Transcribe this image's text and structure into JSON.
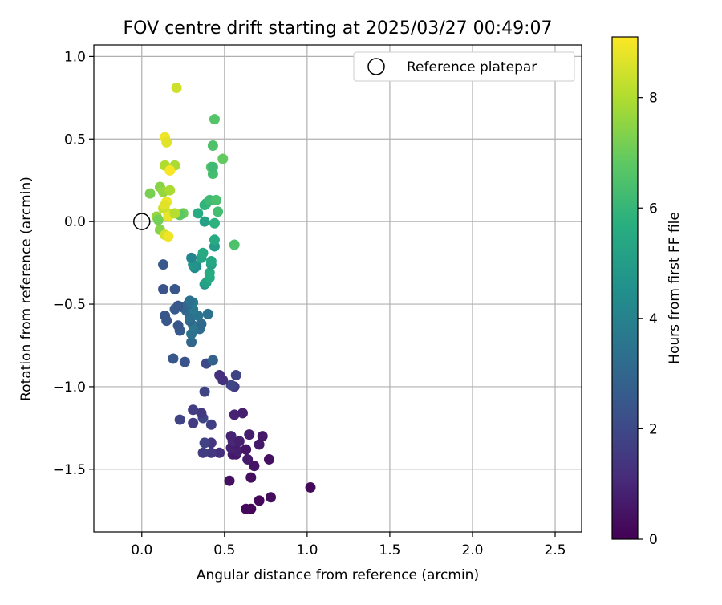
{
  "chart_data": {
    "type": "scatter",
    "title": "FOV centre drift starting at 2025/03/27 00:49:07",
    "xlabel": "Angular distance from reference (arcmin)",
    "ylabel": "Rotation from reference (arcmin)",
    "xlim": [
      -0.29,
      2.66
    ],
    "ylim": [
      -1.88,
      1.07
    ],
    "x_ticks": [
      0.0,
      0.5,
      1.0,
      1.5,
      2.0,
      2.5
    ],
    "x_tick_labels": [
      "0.0",
      "0.5",
      "1.0",
      "1.5",
      "2.0",
      "2.5"
    ],
    "y_ticks": [
      1.0,
      0.5,
      0.0,
      -0.5,
      -1.0,
      -1.5
    ],
    "y_tick_labels": [
      "1.0",
      "0.5",
      "0.0",
      "−0.5",
      "−1.0",
      "−1.5"
    ],
    "grid": true,
    "legend": {
      "position": "top-right",
      "entries": [
        {
          "label": "Reference platepar",
          "marker": "open-circle"
        }
      ]
    },
    "reference_point": {
      "x": 0.0,
      "y": 0.0
    },
    "colorbar": {
      "label": "Hours from first FF file",
      "colormap": "viridis",
      "range": [
        0,
        9.1
      ],
      "ticks": [
        0,
        2,
        4,
        6,
        8
      ],
      "tick_labels": [
        "0",
        "2",
        "4",
        "6",
        "8"
      ]
    },
    "points": [
      {
        "x": 0.66,
        "y": -1.74,
        "c": 0.1
      },
      {
        "x": 0.63,
        "y": -1.74,
        "c": 0.2
      },
      {
        "x": 0.71,
        "y": -1.69,
        "c": 0.15
      },
      {
        "x": 0.78,
        "y": -1.67,
        "c": 0.3
      },
      {
        "x": 1.02,
        "y": -1.61,
        "c": 0.2
      },
      {
        "x": 0.53,
        "y": -1.57,
        "c": 0.4
      },
      {
        "x": 0.66,
        "y": -1.55,
        "c": 0.35
      },
      {
        "x": 0.68,
        "y": -1.48,
        "c": 0.5
      },
      {
        "x": 0.64,
        "y": -1.44,
        "c": 0.6
      },
      {
        "x": 0.77,
        "y": -1.44,
        "c": 0.4
      },
      {
        "x": 0.55,
        "y": -1.41,
        "c": 0.7
      },
      {
        "x": 0.57,
        "y": -1.41,
        "c": 0.6
      },
      {
        "x": 0.58,
        "y": -1.39,
        "c": 0.8
      },
      {
        "x": 0.63,
        "y": -1.38,
        "c": 0.5
      },
      {
        "x": 0.54,
        "y": -1.37,
        "c": 0.9
      },
      {
        "x": 0.56,
        "y": -1.35,
        "c": 0.7
      },
      {
        "x": 0.71,
        "y": -1.35,
        "c": 0.6
      },
      {
        "x": 0.55,
        "y": -1.33,
        "c": 1.0
      },
      {
        "x": 0.59,
        "y": -1.33,
        "c": 0.8
      },
      {
        "x": 0.54,
        "y": -1.3,
        "c": 0.9
      },
      {
        "x": 0.65,
        "y": -1.29,
        "c": 0.7
      },
      {
        "x": 0.73,
        "y": -1.3,
        "c": 0.6
      },
      {
        "x": 0.56,
        "y": -1.17,
        "c": 0.9
      },
      {
        "x": 0.61,
        "y": -1.16,
        "c": 0.8
      },
      {
        "x": 0.47,
        "y": -1.4,
        "c": 1.2
      },
      {
        "x": 0.42,
        "y": -1.4,
        "c": 1.5
      },
      {
        "x": 0.37,
        "y": -1.4,
        "c": 1.6
      },
      {
        "x": 0.42,
        "y": -1.34,
        "c": 1.4
      },
      {
        "x": 0.38,
        "y": -1.34,
        "c": 1.8
      },
      {
        "x": 0.42,
        "y": -1.23,
        "c": 1.7
      },
      {
        "x": 0.31,
        "y": -1.22,
        "c": 1.6
      },
      {
        "x": 0.23,
        "y": -1.2,
        "c": 1.8
      },
      {
        "x": 0.37,
        "y": -1.19,
        "c": 1.9
      },
      {
        "x": 0.36,
        "y": -1.16,
        "c": 1.5
      },
      {
        "x": 0.31,
        "y": -1.14,
        "c": 1.6
      },
      {
        "x": 0.38,
        "y": -1.03,
        "c": 1.8
      },
      {
        "x": 0.56,
        "y": -1.0,
        "c": 1.6
      },
      {
        "x": 0.54,
        "y": -0.99,
        "c": 1.9
      },
      {
        "x": 0.49,
        "y": -0.96,
        "c": 1.3
      },
      {
        "x": 0.57,
        "y": -0.93,
        "c": 1.8
      },
      {
        "x": 0.47,
        "y": -0.93,
        "c": 1.2
      },
      {
        "x": 0.39,
        "y": -0.86,
        "c": 2.0
      },
      {
        "x": 0.26,
        "y": -0.85,
        "c": 2.3
      },
      {
        "x": 0.19,
        "y": -0.83,
        "c": 2.5
      },
      {
        "x": 0.43,
        "y": -0.84,
        "c": 2.8
      },
      {
        "x": 0.3,
        "y": -0.73,
        "c": 3.0
      },
      {
        "x": 0.3,
        "y": -0.68,
        "c": 3.4
      },
      {
        "x": 0.35,
        "y": -0.65,
        "c": 3.2
      },
      {
        "x": 0.23,
        "y": -0.66,
        "c": 2.6
      },
      {
        "x": 0.22,
        "y": -0.63,
        "c": 2.4
      },
      {
        "x": 0.31,
        "y": -0.63,
        "c": 3.6
      },
      {
        "x": 0.36,
        "y": -0.62,
        "c": 3.1
      },
      {
        "x": 0.29,
        "y": -0.6,
        "c": 3.0
      },
      {
        "x": 0.15,
        "y": -0.6,
        "c": 2.5
      },
      {
        "x": 0.14,
        "y": -0.57,
        "c": 2.4
      },
      {
        "x": 0.29,
        "y": -0.58,
        "c": 3.3
      },
      {
        "x": 0.34,
        "y": -0.57,
        "c": 3.5
      },
      {
        "x": 0.4,
        "y": -0.56,
        "c": 3.4
      },
      {
        "x": 0.27,
        "y": -0.54,
        "c": 3.1
      },
      {
        "x": 0.2,
        "y": -0.53,
        "c": 2.6
      },
      {
        "x": 0.31,
        "y": -0.53,
        "c": 3.6
      },
      {
        "x": 0.25,
        "y": -0.52,
        "c": 2.9
      },
      {
        "x": 0.22,
        "y": -0.51,
        "c": 2.5
      },
      {
        "x": 0.28,
        "y": -0.5,
        "c": 3.0
      },
      {
        "x": 0.31,
        "y": -0.49,
        "c": 3.7
      },
      {
        "x": 0.29,
        "y": -0.48,
        "c": 3.3
      },
      {
        "x": 0.13,
        "y": -0.41,
        "c": 2.3
      },
      {
        "x": 0.2,
        "y": -0.41,
        "c": 2.4
      },
      {
        "x": 0.13,
        "y": -0.26,
        "c": 2.5
      },
      {
        "x": 0.38,
        "y": -0.38,
        "c": 4.8
      },
      {
        "x": 0.39,
        "y": -0.37,
        "c": 5.2
      },
      {
        "x": 0.41,
        "y": -0.34,
        "c": 5.5
      },
      {
        "x": 0.41,
        "y": -0.31,
        "c": 5.6
      },
      {
        "x": 0.32,
        "y": -0.28,
        "c": 4.3
      },
      {
        "x": 0.33,
        "y": -0.27,
        "c": 4.5
      },
      {
        "x": 0.31,
        "y": -0.26,
        "c": 4.7
      },
      {
        "x": 0.42,
        "y": -0.26,
        "c": 5.1
      },
      {
        "x": 0.42,
        "y": -0.24,
        "c": 5.4
      },
      {
        "x": 0.36,
        "y": -0.22,
        "c": 5.3
      },
      {
        "x": 0.3,
        "y": -0.22,
        "c": 4.1
      },
      {
        "x": 0.37,
        "y": -0.19,
        "c": 5.5
      },
      {
        "x": 0.44,
        "y": -0.15,
        "c": 5.0
      },
      {
        "x": 0.56,
        "y": -0.14,
        "c": 6.5
      },
      {
        "x": 0.44,
        "y": -0.11,
        "c": 5.5
      },
      {
        "x": 0.44,
        "y": -0.01,
        "c": 5.8
      },
      {
        "x": 0.38,
        "y": 0.0,
        "c": 5.2
      },
      {
        "x": 0.34,
        "y": 0.05,
        "c": 5.6
      },
      {
        "x": 0.25,
        "y": 0.05,
        "c": 7.0
      },
      {
        "x": 0.23,
        "y": 0.04,
        "c": 6.8
      },
      {
        "x": 0.46,
        "y": 0.06,
        "c": 6.3
      },
      {
        "x": 0.38,
        "y": 0.1,
        "c": 5.9
      },
      {
        "x": 0.39,
        "y": 0.11,
        "c": 5.9
      },
      {
        "x": 0.41,
        "y": 0.13,
        "c": 6.2
      },
      {
        "x": 0.45,
        "y": 0.13,
        "c": 6.4
      },
      {
        "x": 0.43,
        "y": 0.29,
        "c": 6.3
      },
      {
        "x": 0.42,
        "y": 0.33,
        "c": 6.6
      },
      {
        "x": 0.43,
        "y": 0.33,
        "c": 6.2
      },
      {
        "x": 0.49,
        "y": 0.38,
        "c": 6.9
      },
      {
        "x": 0.43,
        "y": 0.46,
        "c": 6.5
      },
      {
        "x": 0.44,
        "y": 0.62,
        "c": 6.6
      },
      {
        "x": 0.05,
        "y": 0.17,
        "c": 7.2
      },
      {
        "x": 0.11,
        "y": 0.21,
        "c": 7.4
      },
      {
        "x": 0.13,
        "y": 0.18,
        "c": 7.6
      },
      {
        "x": 0.17,
        "y": 0.19,
        "c": 7.9
      },
      {
        "x": 0.09,
        "y": 0.03,
        "c": 7.6
      },
      {
        "x": 0.1,
        "y": 0.01,
        "c": 7.1
      },
      {
        "x": 0.13,
        "y": 0.08,
        "c": 8.3
      },
      {
        "x": 0.15,
        "y": 0.12,
        "c": 8.9
      },
      {
        "x": 0.14,
        "y": 0.1,
        "c": 8.7
      },
      {
        "x": 0.16,
        "y": 0.05,
        "c": 8.4
      },
      {
        "x": 0.16,
        "y": 0.03,
        "c": 8.8
      },
      {
        "x": 0.2,
        "y": 0.05,
        "c": 8.1
      },
      {
        "x": 0.11,
        "y": -0.05,
        "c": 7.4
      },
      {
        "x": 0.14,
        "y": -0.08,
        "c": 8.5
      },
      {
        "x": 0.16,
        "y": -0.09,
        "c": 8.9
      },
      {
        "x": 0.14,
        "y": 0.34,
        "c": 8.0
      },
      {
        "x": 0.2,
        "y": 0.34,
        "c": 7.9
      },
      {
        "x": 0.17,
        "y": 0.31,
        "c": 9.0
      },
      {
        "x": 0.14,
        "y": 0.51,
        "c": 8.9
      },
      {
        "x": 0.15,
        "y": 0.48,
        "c": 8.7
      },
      {
        "x": 0.21,
        "y": 0.81,
        "c": 8.4
      }
    ]
  }
}
